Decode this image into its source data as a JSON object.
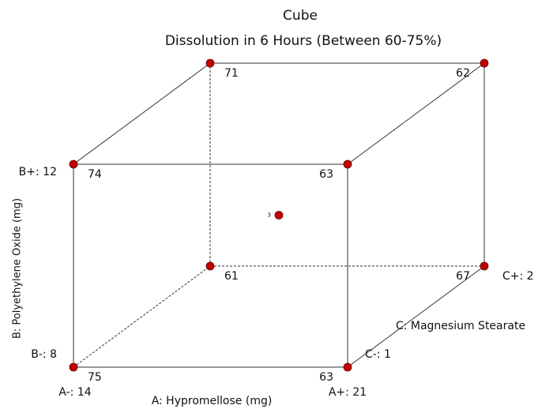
{
  "chart_data": {
    "type": "cube",
    "title": "Cube",
    "subtitle": "Dissolution in 6 Hours (Between 60-75%)",
    "factors": [
      {
        "name": "A: Hypromellose (mg)",
        "low": "A-: 14",
        "high": "A+: 21"
      },
      {
        "name": "B: Polyethylene Oxide (mg)",
        "low": "B-: 8",
        "high": "B+: 12"
      },
      {
        "name": "C: Magnesium Stearate",
        "low": "C-: 1",
        "high": "C+: 2"
      }
    ],
    "values": [
      75,
      63,
      74,
      63,
      61,
      67,
      71,
      62
    ],
    "center_point": 3,
    "color": "#c00000"
  }
}
